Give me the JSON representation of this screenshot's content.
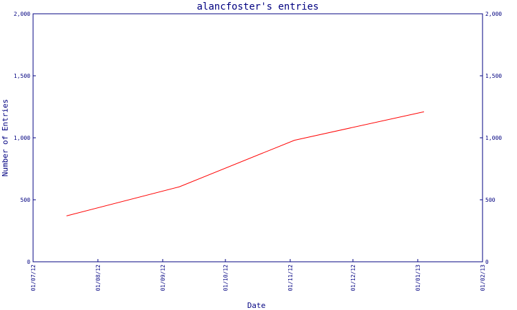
{
  "chart_data": {
    "type": "line",
    "title": "alancfoster's entries",
    "xlabel": "Date",
    "ylabel": "Number of Entries",
    "ylim": [
      0,
      2000
    ],
    "xlim": [
      "2012-07-01",
      "2013-02-01"
    ],
    "y_ticks": [
      0,
      500,
      1000,
      1500,
      2000
    ],
    "y_tick_labels": [
      "0",
      "500",
      "1,000",
      "1,500",
      "2,000"
    ],
    "x_ticks": [
      "2012-07-01",
      "2012-08-01",
      "2012-09-01",
      "2012-10-01",
      "2012-11-01",
      "2012-12-01",
      "2013-01-01",
      "2013-02-01"
    ],
    "x_tick_labels": [
      "01/07/12",
      "01/08/12",
      "01/09/12",
      "01/10/12",
      "01/11/12",
      "01/12/12",
      "01/01/13",
      "01/02/13"
    ],
    "grid": false,
    "y_axis_both_sides": true,
    "series": [
      {
        "color": "#ff0000",
        "x": [
          "2012-07-17",
          "2012-09-09",
          "2012-11-03",
          "2013-01-04"
        ],
        "y": [
          370,
          605,
          980,
          1210
        ]
      }
    ]
  }
}
